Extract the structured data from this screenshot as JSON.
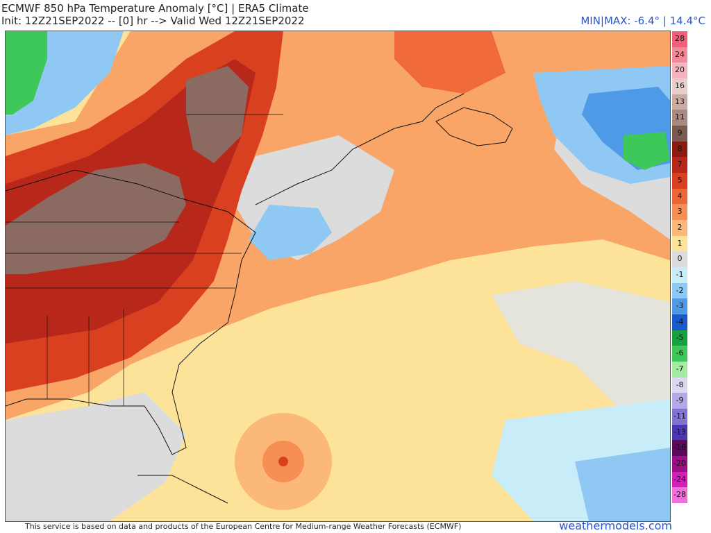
{
  "header": {
    "title_line1": "ECMWF 850 hPa Temperature Anomaly [°C] | ERA5 Climate",
    "title_line2": "Init: 12Z21SEP2022 -- [0] hr --> Valid Wed 12Z21SEP2022",
    "minmax": "MIN|MAX: -6.4° | 14.4°C"
  },
  "legend": {
    "items": [
      {
        "label": "28",
        "color": "#f0607a"
      },
      {
        "label": "24",
        "color": "#f4899a"
      },
      {
        "label": "20",
        "color": "#f7b3bd"
      },
      {
        "label": "16",
        "color": "#e8cfca"
      },
      {
        "label": "13",
        "color": "#c9aaa3"
      },
      {
        "label": "11",
        "color": "#a88880"
      },
      {
        "label": "9",
        "color": "#7b5a52"
      },
      {
        "label": "8",
        "color": "#8b1a10"
      },
      {
        "label": "7",
        "color": "#b8281a"
      },
      {
        "label": "5",
        "color": "#d94020"
      },
      {
        "label": "4",
        "color": "#ee6535"
      },
      {
        "label": "3",
        "color": "#f78f55"
      },
      {
        "label": "2",
        "color": "#fbb878"
      },
      {
        "label": "1",
        "color": "#fde29a"
      },
      {
        "label": "0",
        "color": "#dcdcdc"
      },
      {
        "label": "-1",
        "color": "#c8ecf8"
      },
      {
        "label": "-2",
        "color": "#8fc8f2"
      },
      {
        "label": "-3",
        "color": "#4f9ae6"
      },
      {
        "label": "-4",
        "color": "#1a5ad0"
      },
      {
        "label": "-5",
        "color": "#17a040"
      },
      {
        "label": "-6",
        "color": "#3fc85a"
      },
      {
        "label": "-7",
        "color": "#a4eaa0"
      },
      {
        "label": "-8",
        "color": "#dcd6f0"
      },
      {
        "label": "-9",
        "color": "#b4a8e6"
      },
      {
        "label": "-11",
        "color": "#8272d2"
      },
      {
        "label": "-13",
        "color": "#4a38b0"
      },
      {
        "label": "-16",
        "color": "#5a0a5a"
      },
      {
        "label": "-20",
        "color": "#9a1088"
      },
      {
        "label": "-24",
        "color": "#d020b8"
      },
      {
        "label": "-28",
        "color": "#f070dc"
      }
    ]
  },
  "footer": {
    "attribution": "This service is based on data and products of the European Centre for Medium-range Weather Forecasts (ECMWF)",
    "brand": "weathermodels.com"
  }
}
